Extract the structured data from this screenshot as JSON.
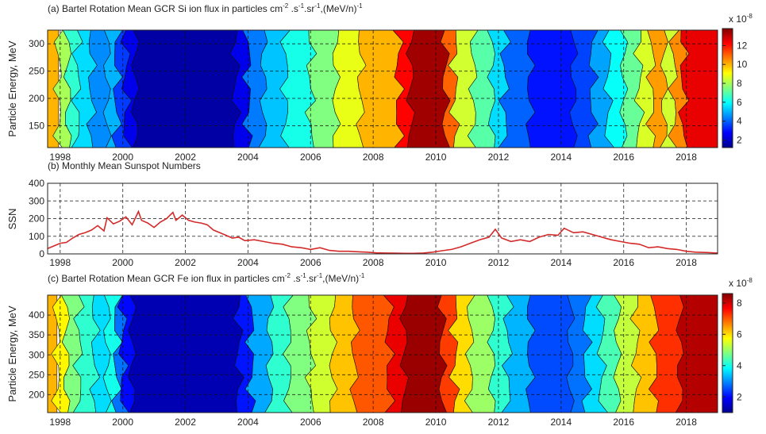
{
  "chart_data": [
    {
      "type": "heatmap",
      "title": "(a) Bartel Rotation Mean GCR Si ion flux in particles cm",
      "title_units": {
        "sup1": "-2",
        "mid1": " .s",
        "sup2": "-1",
        "mid2": ".sr",
        "sup3": "-1",
        "mid3": ",(MeV/n)",
        "sup4": "-1"
      },
      "ylabel": "Particle Energy, MeV",
      "xlim": [
        1997.6,
        2019.0
      ],
      "ylim": [
        110,
        325
      ],
      "x_ticks": [
        1998,
        2000,
        2002,
        2004,
        2006,
        2008,
        2010,
        2012,
        2014,
        2016,
        2018
      ],
      "y_ticks": [
        150,
        200,
        250,
        300
      ],
      "colorbar": {
        "exponent": "x 10",
        "exponent_sup": "-8",
        "ticks": [
          2,
          4,
          6,
          8,
          10,
          12
        ],
        "range": [
          1.2,
          13.8
        ]
      },
      "bands": [
        [
          1997.6,
          10
        ],
        [
          1997.95,
          8
        ],
        [
          1998.25,
          6.5
        ],
        [
          1998.55,
          5.5
        ],
        [
          1999.0,
          4.5
        ],
        [
          1999.5,
          5
        ],
        [
          1999.8,
          3.5
        ],
        [
          2000.1,
          2.5
        ],
        [
          2000.4,
          1.5
        ],
        [
          2003.6,
          2.5
        ],
        [
          2004.0,
          4.3
        ],
        [
          2004.5,
          5.2
        ],
        [
          2005.2,
          6.2
        ],
        [
          2006.0,
          7.5
        ],
        [
          2006.8,
          8.8
        ],
        [
          2007.6,
          10
        ],
        [
          2008.8,
          12.2
        ],
        [
          2009.2,
          13.4
        ],
        [
          2010.3,
          11
        ],
        [
          2010.6,
          8.5
        ],
        [
          2011.2,
          7
        ],
        [
          2011.8,
          5.5
        ],
        [
          2012.2,
          4
        ],
        [
          2013.0,
          3
        ],
        [
          2014.4,
          3.6
        ],
        [
          2015.0,
          4.8
        ],
        [
          2015.5,
          6
        ],
        [
          2016.0,
          7.2
        ],
        [
          2016.5,
          8.6
        ],
        [
          2016.9,
          10.3
        ],
        [
          2017.3,
          8.5
        ],
        [
          2017.6,
          10.5
        ],
        [
          2017.9,
          12.5
        ]
      ]
    },
    {
      "type": "line",
      "title": "(b) Monthly Mean Sunspot Numbers",
      "ylabel": "SSN",
      "xlim": [
        1997.6,
        2019.0
      ],
      "ylim": [
        0,
        400
      ],
      "x_ticks": [
        1998,
        2000,
        2002,
        2004,
        2006,
        2008,
        2010,
        2012,
        2014,
        2016,
        2018
      ],
      "y_ticks": [
        0,
        100,
        200,
        300,
        400
      ],
      "series": [
        {
          "color": "#d42a2a",
          "x": [
            1997.6,
            1997.8,
            1998.0,
            1998.2,
            1998.4,
            1998.6,
            1998.8,
            1999.0,
            1999.2,
            1999.4,
            1999.5,
            1999.7,
            1999.9,
            2000.1,
            2000.3,
            2000.5,
            2000.6,
            2000.8,
            2001.0,
            2001.2,
            2001.4,
            2001.6,
            2001.7,
            2001.9,
            2002.1,
            2002.3,
            2002.5,
            2002.7,
            2002.9,
            2003.1,
            2003.3,
            2003.5,
            2003.7,
            2003.9,
            2004.2,
            2004.5,
            2004.8,
            2005.1,
            2005.4,
            2005.7,
            2006.0,
            2006.3,
            2006.6,
            2006.9,
            2007.2,
            2007.5,
            2007.8,
            2008.1,
            2008.4,
            2008.7,
            2009.0,
            2009.3,
            2009.6,
            2009.9,
            2010.2,
            2010.5,
            2010.8,
            2011.1,
            2011.4,
            2011.7,
            2011.9,
            2012.1,
            2012.4,
            2012.7,
            2013.0,
            2013.3,
            2013.6,
            2013.9,
            2014.1,
            2014.4,
            2014.7,
            2015.0,
            2015.3,
            2015.6,
            2015.9,
            2016.2,
            2016.5,
            2016.8,
            2017.1,
            2017.4,
            2017.7,
            2018.0,
            2018.3,
            2018.6,
            2019.0
          ],
          "y": [
            30,
            45,
            60,
            65,
            90,
            110,
            120,
            135,
            160,
            130,
            205,
            170,
            185,
            210,
            165,
            240,
            190,
            175,
            150,
            180,
            200,
            235,
            190,
            220,
            190,
            180,
            175,
            165,
            135,
            120,
            105,
            90,
            95,
            75,
            80,
            70,
            60,
            55,
            40,
            35,
            25,
            35,
            20,
            15,
            15,
            12,
            10,
            6,
            5,
            4,
            3,
            3,
            5,
            10,
            18,
            25,
            40,
            60,
            80,
            95,
            140,
            90,
            70,
            80,
            70,
            95,
            110,
            105,
            145,
            120,
            125,
            110,
            95,
            80,
            70,
            60,
            55,
            35,
            40,
            30,
            25,
            15,
            10,
            8,
            5
          ]
        }
      ]
    },
    {
      "type": "heatmap",
      "title": "(c) Bartel Rotation Mean GCR Fe ion flux in particles cm",
      "title_units": {
        "sup1": "-2",
        "mid1": " .s",
        "sup2": "-1",
        "mid2": ".sr",
        "sup3": "-1",
        "mid3": ",(MeV/n)",
        "sup4": "-1"
      },
      "ylabel": "Particle Energy, MeV",
      "xlim": [
        1997.6,
        2019.0
      ],
      "ylim": [
        155,
        450
      ],
      "x_ticks": [
        1998,
        2000,
        2002,
        2004,
        2006,
        2008,
        2010,
        2012,
        2014,
        2016,
        2018
      ],
      "y_ticks": [
        200,
        250,
        300,
        350,
        400
      ],
      "colorbar": {
        "exponent": "x 10",
        "exponent_sup": "-8",
        "ticks": [
          2,
          4,
          6,
          8
        ],
        "range": [
          1.0,
          8.6
        ]
      },
      "bands": [
        [
          1997.6,
          6.3
        ],
        [
          1997.9,
          5.8
        ],
        [
          1998.2,
          4.8
        ],
        [
          1998.6,
          4.2
        ],
        [
          1999.1,
          3.6
        ],
        [
          1999.5,
          4.0
        ],
        [
          1999.8,
          2.8
        ],
        [
          2000.0,
          2.0
        ],
        [
          2000.3,
          1.3
        ],
        [
          2003.7,
          2.1
        ],
        [
          2004.1,
          3.2
        ],
        [
          2004.7,
          4.2
        ],
        [
          2005.3,
          4.8
        ],
        [
          2006.0,
          5.4
        ],
        [
          2006.7,
          6.2
        ],
        [
          2007.4,
          7.0
        ],
        [
          2008.5,
          7.8
        ],
        [
          2009.0,
          8.4
        ],
        [
          2010.2,
          7.2
        ],
        [
          2010.6,
          6.0
        ],
        [
          2011.1,
          5.0
        ],
        [
          2011.8,
          4.2
        ],
        [
          2012.3,
          3.3
        ],
        [
          2013.0,
          2.5
        ],
        [
          2014.3,
          2.8
        ],
        [
          2014.8,
          3.6
        ],
        [
          2015.3,
          4.4
        ],
        [
          2015.8,
          5.3
        ],
        [
          2016.4,
          6.2
        ],
        [
          2017.0,
          7.3
        ],
        [
          2017.8,
          8.2
        ]
      ]
    }
  ]
}
